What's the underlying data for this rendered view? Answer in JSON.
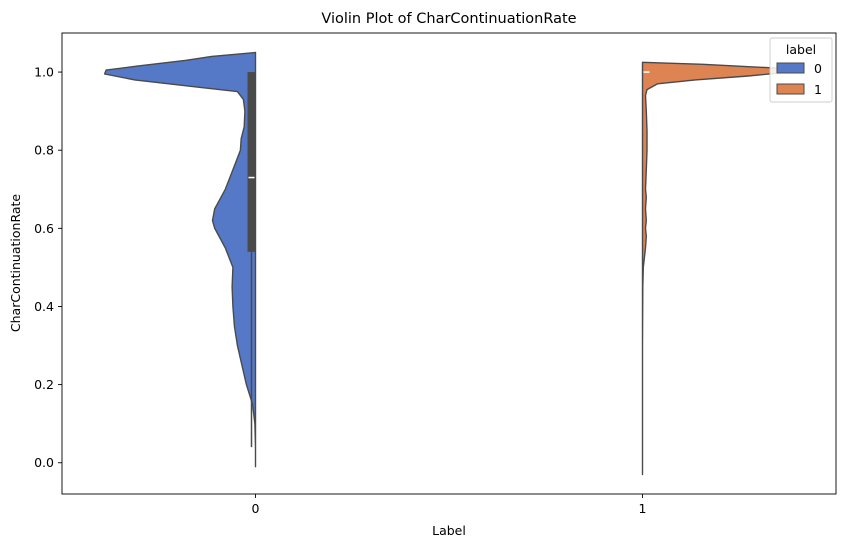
{
  "chart_data": {
    "type": "violin",
    "title": "Violin Plot of CharContinuationRate",
    "xlabel": "Label",
    "ylabel": "CharContinuationRate",
    "categories": [
      "0",
      "1"
    ],
    "ylim": [
      -0.08,
      1.1
    ],
    "yticks": [
      0.0,
      0.2,
      0.4,
      0.6,
      0.8,
      1.0
    ],
    "ytick_labels": [
      "0.0",
      "0.2",
      "0.4",
      "0.6",
      "0.8",
      "1.0"
    ],
    "grid": false,
    "split": true,
    "legend": {
      "title": "label",
      "placement": "top-right",
      "entries": [
        {
          "label": "0",
          "color": "#5579C6"
        },
        {
          "label": "1",
          "color": "#DD8452"
        }
      ]
    },
    "series": [
      {
        "name": "0",
        "category": "0",
        "side": "left",
        "color": "#5579C6",
        "y_range": [
          -0.01,
          1.05
        ],
        "density": [
          [
            -0.01,
            0.0
          ],
          [
            0.04,
            0.0
          ],
          [
            0.1,
            0.004
          ],
          [
            0.15,
            0.02
          ],
          [
            0.2,
            0.06
          ],
          [
            0.25,
            0.09
          ],
          [
            0.3,
            0.12
          ],
          [
            0.35,
            0.14
          ],
          [
            0.4,
            0.15
          ],
          [
            0.45,
            0.155
          ],
          [
            0.5,
            0.15
          ],
          [
            0.55,
            0.2
          ],
          [
            0.6,
            0.27
          ],
          [
            0.62,
            0.285
          ],
          [
            0.65,
            0.27
          ],
          [
            0.7,
            0.2
          ],
          [
            0.75,
            0.15
          ],
          [
            0.8,
            0.1
          ],
          [
            0.83,
            0.095
          ],
          [
            0.86,
            0.075
          ],
          [
            0.9,
            0.07
          ],
          [
            0.93,
            0.08
          ],
          [
            0.95,
            0.12
          ],
          [
            0.96,
            0.35
          ],
          [
            0.98,
            0.8
          ],
          [
            0.995,
            1.0
          ],
          [
            1.005,
            0.99
          ],
          [
            1.015,
            0.79
          ],
          [
            1.03,
            0.46
          ],
          [
            1.04,
            0.29
          ],
          [
            1.05,
            0.0
          ]
        ],
        "box": {
          "q1": 0.54,
          "median": 0.73,
          "q3": 1.0,
          "whisker_low": 0.04,
          "whisker_high": 1.0
        }
      },
      {
        "name": "1",
        "category": "1",
        "side": "right",
        "color": "#DD8452",
        "y_range": [
          -0.03,
          1.025
        ],
        "density": [
          [
            -0.03,
            0.0
          ],
          [
            0.3,
            0.0
          ],
          [
            0.4,
            0.001
          ],
          [
            0.45,
            0.002
          ],
          [
            0.5,
            0.005
          ],
          [
            0.55,
            0.02
          ],
          [
            0.58,
            0.025
          ],
          [
            0.6,
            0.02
          ],
          [
            0.62,
            0.025
          ],
          [
            0.65,
            0.02
          ],
          [
            0.68,
            0.025
          ],
          [
            0.7,
            0.02
          ],
          [
            0.75,
            0.025
          ],
          [
            0.8,
            0.03
          ],
          [
            0.85,
            0.03
          ],
          [
            0.9,
            0.025
          ],
          [
            0.94,
            0.02
          ],
          [
            0.955,
            0.03
          ],
          [
            0.97,
            0.1
          ],
          [
            0.98,
            0.35
          ],
          [
            0.99,
            0.7
          ],
          [
            1.0,
            0.97
          ],
          [
            1.005,
            0.99
          ],
          [
            1.01,
            0.9
          ],
          [
            1.02,
            0.4
          ],
          [
            1.025,
            0.0
          ]
        ],
        "box": {
          "median": 1.0
        }
      }
    ]
  }
}
